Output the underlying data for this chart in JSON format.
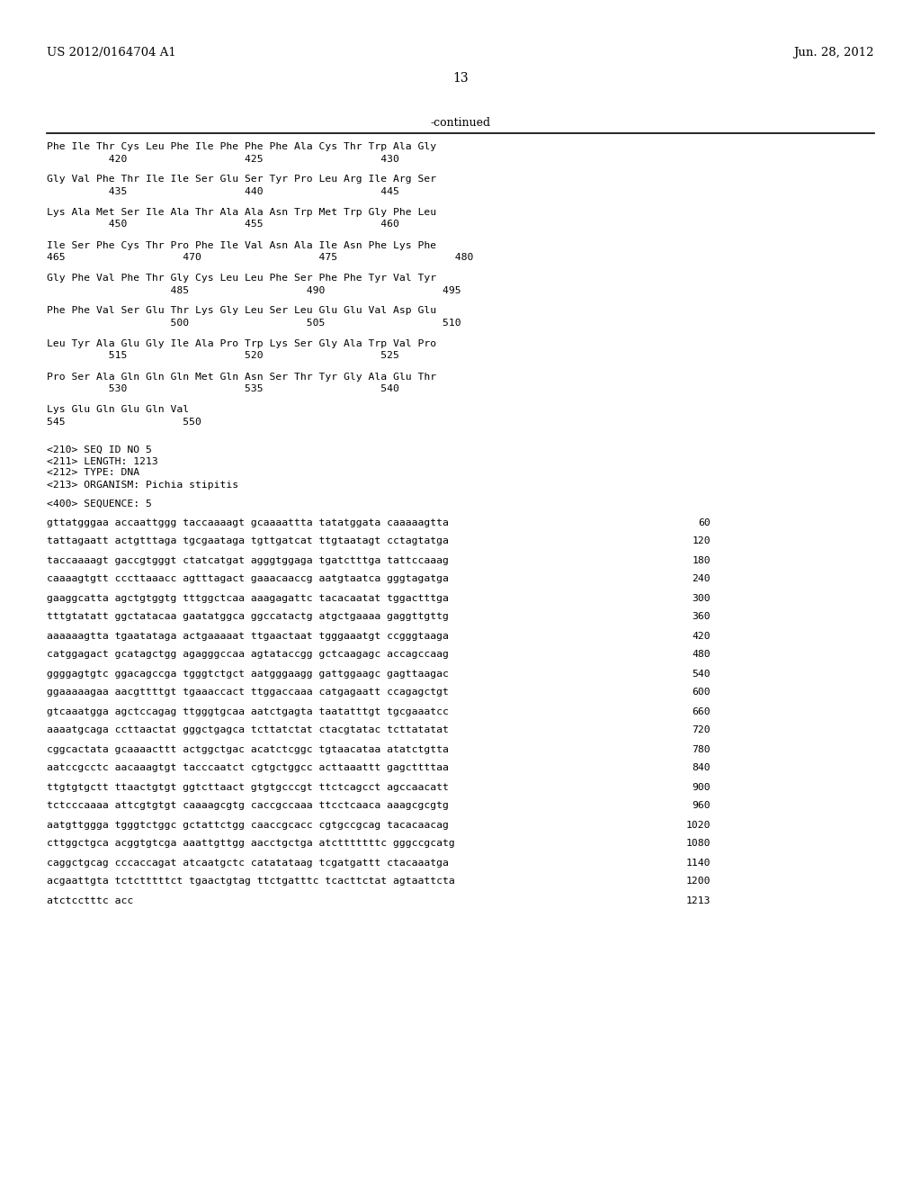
{
  "header_left": "US 2012/0164704 A1",
  "header_right": "Jun. 28, 2012",
  "page_number": "13",
  "continued_label": "-continued",
  "bg_color": "#ffffff",
  "text_color": "#000000",
  "aa_entries": [
    [
      "Phe Ile Thr Cys Leu Phe Ile Phe Phe Phe Ala Cys Thr Trp Ala Gly",
      "          420                   425                   430"
    ],
    [
      "Gly Val Phe Thr Ile Ile Ser Glu Ser Tyr Pro Leu Arg Ile Arg Ser",
      "          435                   440                   445"
    ],
    [
      "Lys Ala Met Ser Ile Ala Thr Ala Ala Asn Trp Met Trp Gly Phe Leu",
      "          450                   455                   460"
    ],
    [
      "Ile Ser Phe Cys Thr Pro Phe Ile Val Asn Ala Ile Asn Phe Lys Phe",
      "465                   470                   475                   480"
    ],
    [
      "Gly Phe Val Phe Thr Gly Cys Leu Leu Phe Ser Phe Phe Tyr Val Tyr",
      "                    485                   490                   495"
    ],
    [
      "Phe Phe Val Ser Glu Thr Lys Gly Leu Ser Leu Glu Glu Val Asp Glu",
      "                    500                   505                   510"
    ],
    [
      "Leu Tyr Ala Glu Gly Ile Ala Pro Trp Lys Ser Gly Ala Trp Val Pro",
      "          515                   520                   525"
    ],
    [
      "Pro Ser Ala Gln Gln Gln Met Gln Asn Ser Thr Tyr Gly Ala Glu Thr",
      "          530                   535                   540"
    ],
    [
      "Lys Glu Gln Glu Gln Val",
      "545                   550"
    ]
  ],
  "meta_lines": [
    "<210> SEQ ID NO 5",
    "<211> LENGTH: 1213",
    "<212> TYPE: DNA",
    "<213> ORGANISM: Pichia stipitis"
  ],
  "seq_label": "<400> SEQUENCE: 5",
  "dna_entries": [
    [
      "gttatgggaa accaattggg taccaaaagt gcaaaattta tatatggata caaaaagtta",
      "60"
    ],
    [
      "tattagaatt actgtttaga tgcgaataga tgttgatcat ttgtaatagt cctagtatga",
      "120"
    ],
    [
      "taccaaaagt gaccgtgggt ctatcatgat agggtggaga tgatctttga tattccaaag",
      "180"
    ],
    [
      "caaaagtgtt cccttaaacc agtttagact gaaacaaccg aatgtaatca gggtagatga",
      "240"
    ],
    [
      "gaaggcatta agctgtggtg tttggctcaa aaagagattc tacacaatat tggactttga",
      "300"
    ],
    [
      "tttgtatatt ggctatacaa gaatatggca ggccatactg atgctgaaaa gaggttgttg",
      "360"
    ],
    [
      "aaaaaagtta tgaatataga actgaaaaat ttgaactaat tgggaaatgt ccgggtaaga",
      "420"
    ],
    [
      "catggagact gcatagctgg agagggccaa agtataccgg gctcaagagc accagccaag",
      "480"
    ],
    [
      "ggggagtgtc ggacagccga tgggtctgct aatgggaagg gattggaagc gagttaagac",
      "540"
    ],
    [
      "ggaaaaagaa aacgttttgt tgaaaccact ttggaccaaa catgagaatt ccagagctgt",
      "600"
    ],
    [
      "gtcaaatgga agctccagag ttgggtgcaa aatctgagta taatatttgt tgcgaaatcc",
      "660"
    ],
    [
      "aaaatgcaga ccttaactat gggctgagca tcttatctat ctacgtatac tcttatatat",
      "720"
    ],
    [
      "cggcactata gcaaaacttt actggctgac acatctcggc tgtaacataa atatctgtta",
      "780"
    ],
    [
      "aatccgcctc aacaaagtgt tacccaatct cgtgctggcc acttaaattt gagcttttaa",
      "840"
    ],
    [
      "ttgtgtgctt ttaactgtgt ggtcttaact gtgtgcccgt ttctcagcct agccaacatt",
      "900"
    ],
    [
      "tctcccaaaa attcgtgtgt caaaagcgtg caccgccaaa ttcctcaaca aaagcgcgtg",
      "960"
    ],
    [
      "aatgttggga tgggtctggc gctattctgg caaccgcacc cgtgccgcag tacacaacag",
      "1020"
    ],
    [
      "cttggctgca acggtgtcga aaattgttgg aacctgctga atctttttttc gggccgcatg",
      "1080"
    ],
    [
      "caggctgcag cccaccagat atcaatgctc catatataag tcgatgattt ctacaaatga",
      "1140"
    ],
    [
      "acgaattgta tctctttttct tgaactgtag ttctgatttc tcacttctat agtaattcta",
      "1200"
    ],
    [
      "atctcctttc acc",
      "1213"
    ]
  ]
}
